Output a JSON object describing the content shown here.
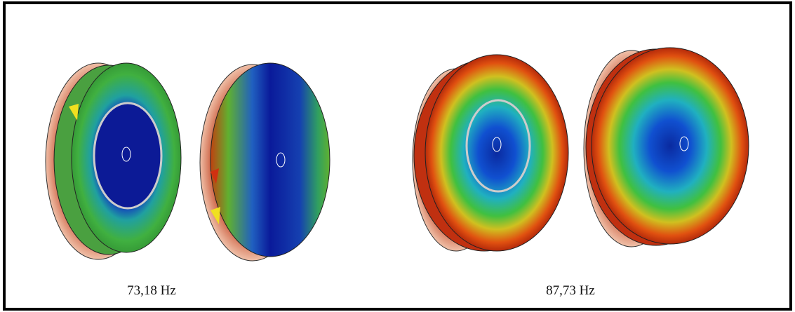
{
  "panels": [
    {
      "caption": "73,18 Hz"
    },
    {
      "caption": "87,73 Hz"
    }
  ]
}
